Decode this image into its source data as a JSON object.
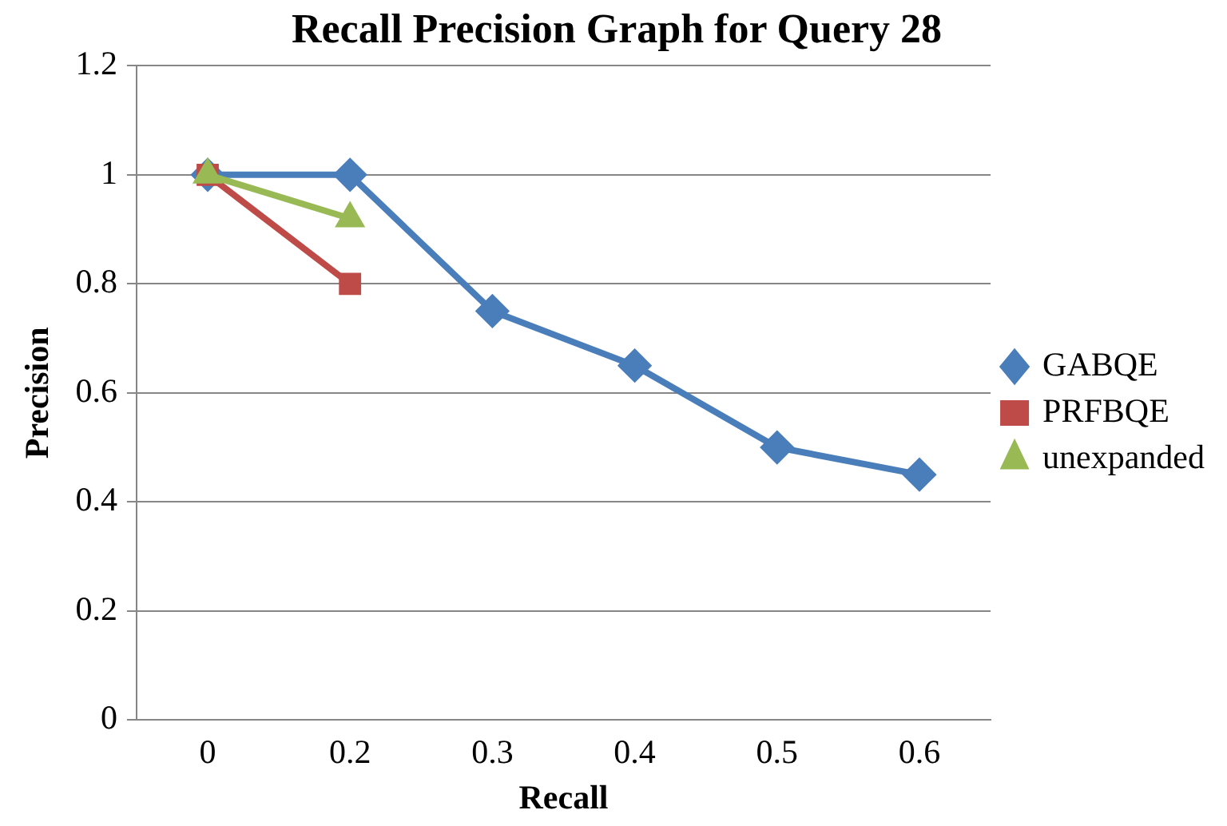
{
  "chart_data": {
    "type": "line",
    "title": "Recall Precision Graph for Query 28",
    "xlabel": "Recall",
    "ylabel": "Precision",
    "categories": [
      "0",
      "0.2",
      "0.3",
      "0.4",
      "0.5",
      "0.6"
    ],
    "series": [
      {
        "name": "GABQE",
        "color": "#4a7ebb",
        "values": [
          1,
          1,
          0.75,
          0.65,
          0.5,
          0.45
        ],
        "marker": "diamond"
      },
      {
        "name": "PRFBQE",
        "color": "#be4b48",
        "values": [
          1,
          0.8,
          null,
          null,
          null,
          null
        ],
        "marker": "square"
      },
      {
        "name": "unexpanded",
        "color": "#98b954",
        "values": [
          1,
          0.92,
          null,
          null,
          null,
          null
        ],
        "marker": "triangle"
      }
    ],
    "ylim": [
      0,
      1.2
    ],
    "yticks": [
      0,
      0.2,
      0.4,
      0.6,
      0.8,
      1,
      1.2
    ],
    "grid": "y",
    "legend": "right",
    "line_style": "solid"
  }
}
